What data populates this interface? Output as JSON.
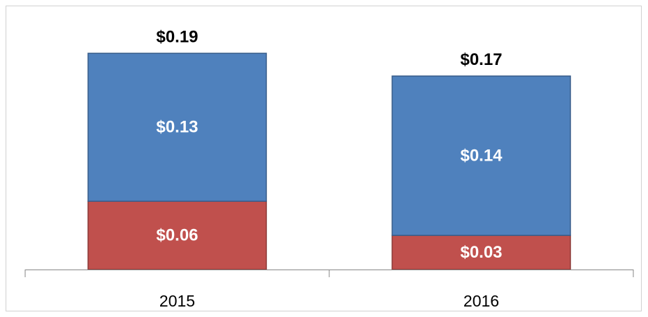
{
  "chart_data": {
    "type": "stacked_bar",
    "categories": [
      "2015",
      "2016"
    ],
    "series": [
      {
        "color": "#c0504d",
        "values": [
          0.06,
          0.03
        ],
        "value_labels": [
          "$0.06",
          "$0.03"
        ]
      },
      {
        "color": "#4f81bd",
        "values": [
          0.13,
          0.14
        ],
        "value_labels": [
          "$0.13",
          "$0.14"
        ]
      }
    ],
    "totals": [
      0.19,
      0.17
    ],
    "total_labels": [
      "$0.19",
      "$0.17"
    ],
    "ylim": [
      0,
      0.2
    ]
  }
}
